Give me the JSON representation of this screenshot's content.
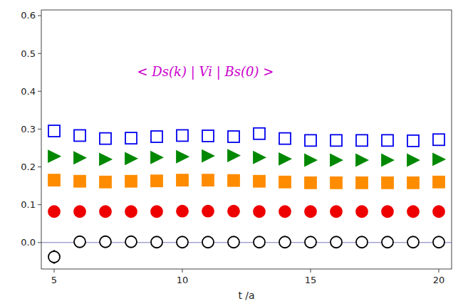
{
  "chart_data": {
    "type": "scatter",
    "xlabel": "t /a",
    "xlim": [
      4.5,
      20.5
    ],
    "ylim": [
      -0.07,
      0.615
    ],
    "xticks": [
      5,
      10,
      15,
      20
    ],
    "yticks": [
      {
        "value": 0.0,
        "label": "0.0"
      },
      0.1,
      0.2,
      0.3,
      0.4,
      0.5,
      0.6
    ],
    "grid": false,
    "annotations": [
      {
        "text": "< Ds(k) | Vi | Bs(0) >",
        "color": "#cc00cc"
      }
    ],
    "reference_lines": [
      {
        "y": 0.0,
        "color": "#7777bb"
      }
    ],
    "x": [
      5,
      6,
      7,
      8,
      9,
      10,
      11,
      12,
      13,
      14,
      15,
      16,
      17,
      18,
      19,
      20
    ],
    "series": [
      {
        "color": "#0000ee",
        "marker": "square-open",
        "values": [
          0.295,
          0.283,
          0.275,
          0.276,
          0.28,
          0.283,
          0.282,
          0.28,
          0.288,
          0.275,
          0.27,
          0.27,
          0.27,
          0.27,
          0.269,
          0.272
        ],
        "errors": [
          0.008,
          0.008,
          0.007,
          0.007,
          0.005,
          0.004,
          0.004,
          0.004,
          0.005,
          0.007,
          0.007,
          0.007,
          0.007,
          0.007,
          0.007,
          0.007
        ]
      },
      {
        "color": "#008800",
        "marker": "triangle-right",
        "values": [
          0.228,
          0.224,
          0.22,
          0.222,
          0.225,
          0.227,
          0.229,
          0.23,
          0.225,
          0.221,
          0.218,
          0.218,
          0.218,
          0.218,
          0.218,
          0.22
        ],
        "errors": [
          0.006,
          0.006,
          0.005,
          0.005,
          0.004,
          0.003,
          0.003,
          0.003,
          0.005,
          0.005,
          0.005,
          0.005,
          0.005,
          0.005,
          0.005,
          0.005
        ]
      },
      {
        "color": "#ff8c00",
        "marker": "square",
        "values": [
          0.165,
          0.162,
          0.16,
          0.162,
          0.163,
          0.165,
          0.165,
          0.164,
          0.162,
          0.16,
          0.158,
          0.158,
          0.158,
          0.158,
          0.158,
          0.16
        ],
        "errors": [
          0.005,
          0.004,
          0.004,
          0.004,
          0.003,
          0.003,
          0.003,
          0.003,
          0.004,
          0.004,
          0.004,
          0.004,
          0.004,
          0.004,
          0.004,
          0.004
        ]
      },
      {
        "color": "#ee0000",
        "marker": "circle",
        "values": [
          0.082,
          0.082,
          0.082,
          0.082,
          0.082,
          0.083,
          0.083,
          0.083,
          0.082,
          0.082,
          0.082,
          0.082,
          0.082,
          0.082,
          0.082,
          0.082
        ],
        "errors": [
          0.005,
          0.004,
          0.004,
          0.004,
          0.003,
          0.003,
          0.003,
          0.003,
          0.004,
          0.004,
          0.004,
          0.004,
          0.004,
          0.004,
          0.004,
          0.004
        ]
      },
      {
        "color": "#000000",
        "marker": "circle-open",
        "values": [
          -0.038,
          0.002,
          0.002,
          0.002,
          0.001,
          0.001,
          0.001,
          0.001,
          0.001,
          0.001,
          0.001,
          0.001,
          0.001,
          0.001,
          0.001,
          0.001
        ],
        "errors": [
          0.018,
          0.008,
          0.006,
          0.005,
          0.004,
          0.003,
          0.003,
          0.003,
          0.003,
          0.003,
          0.003,
          0.003,
          0.003,
          0.003,
          0.003,
          0.003
        ]
      }
    ]
  }
}
